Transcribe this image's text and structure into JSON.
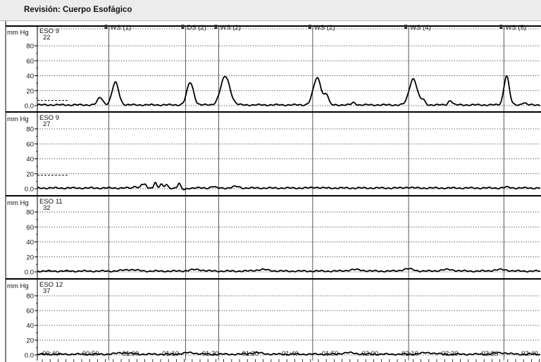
{
  "window": {
    "title": "Revisión: Cuerpo Esofágico"
  },
  "chart_data": {
    "type": "line",
    "y_unit": "mm Hg",
    "y_ticks": [
      "0.0",
      "20",
      "40",
      "60",
      "80"
    ],
    "ylim": [
      0,
      90
    ],
    "x_range_seconds": [
      0,
      760
    ],
    "x_tick_labels": [
      "00:40",
      "00:50",
      "01:00",
      "01:10",
      "01:20",
      "01:30",
      "01:40",
      "01:50",
      "02:00",
      "02:10",
      "02:20",
      "02:30",
      "02:40"
    ],
    "markers": [
      {
        "label": "WS (1)",
        "t": 108
      },
      {
        "label": "DS (2)",
        "t": 224
      },
      {
        "label": "WS (2)",
        "t": 274
      },
      {
        "label": "WS (2)",
        "t": 416
      },
      {
        "label": "WS (4)",
        "t": 561
      },
      {
        "label": "WS (5)",
        "t": 705
      }
    ],
    "channels": [
      {
        "name": "ESO 9",
        "value": "22",
        "baseline": 1,
        "reference": 7,
        "peaks": [
          [
            95,
            10,
            4
          ],
          [
            118,
            30,
            5
          ],
          [
            231,
            30,
            5
          ],
          [
            284,
            38,
            7
          ],
          [
            423,
            36,
            6
          ],
          [
            437,
            13,
            3
          ],
          [
            478,
            3,
            3
          ],
          [
            568,
            35,
            6
          ],
          [
            583,
            6,
            3
          ],
          [
            624,
            6,
            3
          ],
          [
            709,
            39,
            4
          ],
          [
            735,
            3,
            3
          ]
        ]
      },
      {
        "name": "ESO 9",
        "value": "27",
        "baseline": 1,
        "reference": 18,
        "peaks": [
          [
            148,
            3,
            2
          ],
          [
            158,
            5,
            2
          ],
          [
            163,
            4,
            2
          ],
          [
            178,
            8,
            2
          ],
          [
            187,
            5,
            2
          ],
          [
            195,
            5,
            2
          ],
          [
            214,
            6,
            2
          ],
          [
            222,
            -2,
            3
          ],
          [
            265,
            2,
            3
          ],
          [
            300,
            2,
            5
          ],
          [
            420,
            1,
            5
          ],
          [
            560,
            1,
            5
          ],
          [
            710,
            1,
            5
          ]
        ]
      },
      {
        "name": "ESO 11",
        "value": "32",
        "baseline": 1,
        "reference": 1,
        "peaks": [
          [
            140,
            2,
            10
          ],
          [
            240,
            2,
            10
          ],
          [
            340,
            2,
            10
          ],
          [
            480,
            2,
            10
          ],
          [
            560,
            3,
            8
          ],
          [
            620,
            2,
            10
          ],
          [
            700,
            2,
            10
          ]
        ]
      },
      {
        "name": "ESO 12",
        "value": "37",
        "baseline": 1,
        "reference": 1,
        "peaks": [
          [
            130,
            2,
            10
          ],
          [
            230,
            2,
            10
          ],
          [
            330,
            2,
            10
          ],
          [
            470,
            2,
            10
          ],
          [
            590,
            2,
            10
          ],
          [
            700,
            2,
            10
          ]
        ]
      }
    ]
  }
}
